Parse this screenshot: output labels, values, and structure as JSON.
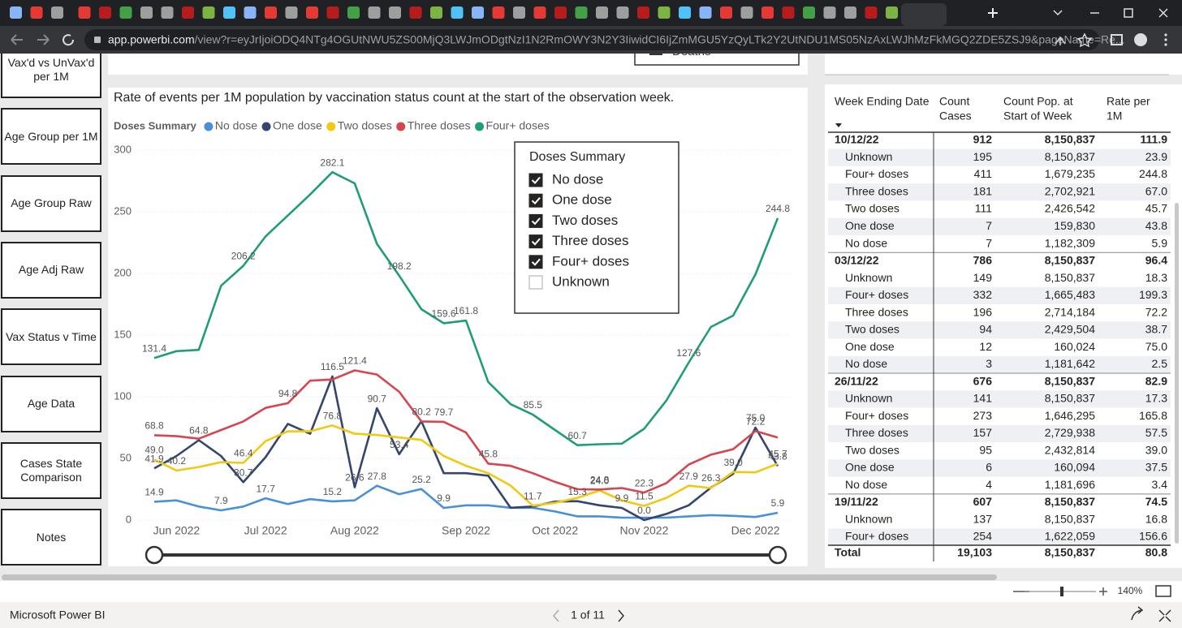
{
  "browser": {
    "url_domain": "app.powerbi.com",
    "url_path": "/view?r=eyJrIjoiODQ4NTg4OGUtNWU5ZS00MjQ3LWJmODgtNzI1N2RmOWY3N2Y3IiwidCI6IjZmMGU5YzQyLTk2Y2UtNDU1MS05NzAxLWJhMzFkMGQ2ZDE5ZSJ9&pageName=Re..."
  },
  "nav": [
    "Vax'd vs UnVax'd per 1M",
    "Age Group per 1M",
    "Age Group Raw",
    "Age Adj Raw",
    "Vax Status v Time",
    "Age Data",
    "Cases State Comparison",
    "Notes"
  ],
  "top_visual_label": "Deaths",
  "chart_data": {
    "type": "line",
    "title": "Rate of events per 1M population by vaccination status count at the start of the observation week.",
    "legend_title": "Doses Summary",
    "categories": [
      null,
      "Jun 2022",
      null,
      null,
      null,
      "Jul 2022",
      null,
      null,
      null,
      "Aug 2022",
      null,
      null,
      null,
      null,
      "Sep 2022",
      null,
      null,
      null,
      "Oct 2022",
      null,
      null,
      null,
      "Nov 2022",
      null,
      null,
      null,
      null,
      "Dec 2022",
      null
    ],
    "ylim": [
      0,
      300
    ],
    "yticks": [
      0,
      50,
      100,
      150,
      200,
      250,
      300
    ],
    "grid": true,
    "series": [
      {
        "name": "No dose",
        "color": "#4a8fd8",
        "values": [
          14.9,
          16,
          11,
          7.9,
          11,
          17.7,
          13,
          17,
          15.2,
          16,
          27.8,
          21,
          25.2,
          9.9,
          12,
          12,
          10,
          10,
          7,
          3,
          3,
          2,
          2,
          2,
          3,
          4,
          3.4,
          2.5,
          5.9
        ],
        "value_labels": [
          "14.9",
          null,
          null,
          "7.9",
          null,
          "17.7",
          null,
          null,
          "15.2",
          null,
          "27.8",
          null,
          "25.2",
          "9.9",
          null,
          null,
          null,
          null,
          null,
          null,
          null,
          null,
          null,
          null,
          null,
          null,
          null,
          null,
          "5.9"
        ]
      },
      {
        "name": "One dose",
        "color": "#34466f",
        "values": [
          41.9,
          52,
          64.8,
          52,
          30.7,
          51,
          78,
          70,
          116.5,
          26.6,
          90.7,
          53.4,
          80.2,
          38,
          38,
          36,
          10,
          11,
          15,
          15.3,
          12,
          9.9,
          0.0,
          5,
          12,
          26.3,
          37.5,
          75.0,
          43.8
        ],
        "value_labels": [
          "41.9",
          null,
          "64.8",
          null,
          "30.7",
          null,
          null,
          null,
          "116.5",
          "26.6",
          "90.7",
          "53.4",
          "80.2",
          null,
          null,
          null,
          null,
          null,
          null,
          "15.3",
          null,
          "9.9",
          "0.0",
          null,
          null,
          "26.3",
          null,
          "75.0",
          "43.8"
        ]
      },
      {
        "name": "Two doses",
        "color": "#f2c811",
        "values": [
          49.0,
          40.2,
          43,
          47,
          46.4,
          64,
          72,
          72,
          76.8,
          70,
          69,
          67,
          65,
          52,
          44,
          38,
          28,
          11.7,
          14,
          18,
          24.0,
          16,
          11.5,
          18,
          27.9,
          26,
          39.0,
          38.7,
          45.7
        ],
        "value_labels": [
          "49.0",
          "40.2",
          null,
          null,
          "46.4",
          null,
          null,
          null,
          "76.8",
          null,
          null,
          null,
          null,
          null,
          null,
          null,
          null,
          "11.7",
          null,
          null,
          "24.0",
          null,
          "11.5",
          null,
          "27.9",
          null,
          "39.0",
          null,
          "45.7"
        ]
      },
      {
        "name": "Three doses",
        "color": "#d64550",
        "values": [
          68.8,
          68,
          66,
          73,
          80,
          91,
          94.8,
          113,
          114,
          121.4,
          118,
          104,
          80,
          79.7,
          71,
          45.8,
          44,
          38,
          31,
          25,
          24.8,
          26,
          22.3,
          30,
          45,
          53,
          57.5,
          72.2,
          67.0
        ],
        "value_labels": [
          "68.8",
          null,
          null,
          null,
          null,
          null,
          "94.8",
          null,
          null,
          "121.4",
          null,
          null,
          null,
          "79.7",
          null,
          "45.8",
          null,
          null,
          null,
          null,
          "24.8",
          null,
          "22.3",
          null,
          null,
          null,
          null,
          "72.2",
          null
        ]
      },
      {
        "name": "Four+ doses",
        "color": "#1f9e74",
        "values": [
          131.4,
          137,
          138,
          190,
          206.2,
          230,
          247,
          264,
          282.1,
          273,
          224,
          198.2,
          171,
          159.6,
          161.8,
          112,
          94,
          85.5,
          73,
          60.7,
          61.5,
          62,
          74,
          97,
          127.6,
          156.6,
          165.8,
          199.3,
          244.8
        ],
        "value_labels": [
          "131.4",
          null,
          null,
          null,
          "206.2",
          null,
          null,
          null,
          "282.1",
          null,
          null,
          "198.2",
          null,
          "159.6",
          "161.8",
          null,
          null,
          "85.5",
          null,
          "60.7",
          null,
          null,
          null,
          null,
          "127.6",
          null,
          null,
          null,
          "244.8"
        ]
      }
    ]
  },
  "slicer": {
    "title": "Doses Summary",
    "items": [
      {
        "label": "No dose",
        "checked": true
      },
      {
        "label": "One dose",
        "checked": true
      },
      {
        "label": "Two doses",
        "checked": true
      },
      {
        "label": "Three doses",
        "checked": true
      },
      {
        "label": "Four+ doses",
        "checked": true
      },
      {
        "label": "Unknown",
        "checked": false
      }
    ]
  },
  "table": {
    "headers": [
      [
        "Week Ending Date"
      ],
      [
        "Count",
        "Cases"
      ],
      [
        "Count Pop. at",
        "Start of Week"
      ],
      [
        "Rate per",
        "1M"
      ]
    ],
    "groups": [
      {
        "cells": [
          "10/12/22",
          "912",
          "8,150,837",
          "111.9"
        ],
        "rows": [
          [
            "Unknown",
            "195",
            "8,150,837",
            "23.9"
          ],
          [
            "Four+ doses",
            "411",
            "1,679,235",
            "244.8"
          ],
          [
            "Three doses",
            "181",
            "2,702,921",
            "67.0"
          ],
          [
            "Two doses",
            "111",
            "2,426,542",
            "45.7"
          ],
          [
            "One dose",
            "7",
            "159,830",
            "43.8"
          ],
          [
            "No dose",
            "7",
            "1,182,309",
            "5.9"
          ]
        ]
      },
      {
        "cells": [
          "03/12/22",
          "786",
          "8,150,837",
          "96.4"
        ],
        "rows": [
          [
            "Unknown",
            "149",
            "8,150,837",
            "18.3"
          ],
          [
            "Four+ doses",
            "332",
            "1,665,483",
            "199.3"
          ],
          [
            "Three doses",
            "196",
            "2,714,184",
            "72.2"
          ],
          [
            "Two doses",
            "94",
            "2,429,504",
            "38.7"
          ],
          [
            "One dose",
            "12",
            "160,024",
            "75.0"
          ],
          [
            "No dose",
            "3",
            "1,181,642",
            "2.5"
          ]
        ]
      },
      {
        "cells": [
          "26/11/22",
          "676",
          "8,150,837",
          "82.9"
        ],
        "rows": [
          [
            "Unknown",
            "141",
            "8,150,837",
            "17.3"
          ],
          [
            "Four+ doses",
            "273",
            "1,646,295",
            "165.8"
          ],
          [
            "Three doses",
            "157",
            "2,729,938",
            "57.5"
          ],
          [
            "Two doses",
            "95",
            "2,432,814",
            "39.0"
          ],
          [
            "One dose",
            "6",
            "160,094",
            "37.5"
          ],
          [
            "No dose",
            "4",
            "1,181,696",
            "3.4"
          ]
        ]
      },
      {
        "cells": [
          "19/11/22",
          "607",
          "8,150,837",
          "74.5"
        ],
        "rows": [
          [
            "Unknown",
            "137",
            "8,150,837",
            "16.8"
          ],
          [
            "Four+ doses",
            "254",
            "1,622,059",
            "156.6"
          ]
        ]
      }
    ],
    "total": [
      "Total",
      "19,103",
      "8,150,837",
      "80.8"
    ]
  },
  "footer": {
    "app_name": "Microsoft Power BI",
    "page_indicator": "1 of 11",
    "zoom": "140%"
  }
}
